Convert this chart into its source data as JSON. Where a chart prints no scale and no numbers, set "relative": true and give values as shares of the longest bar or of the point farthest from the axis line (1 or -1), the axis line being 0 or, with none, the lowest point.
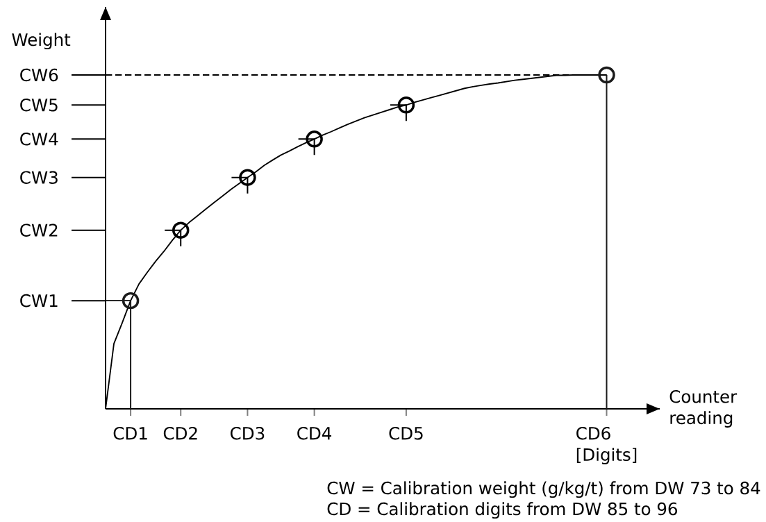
{
  "chart_data": {
    "type": "line",
    "relative": true,
    "xlabel": "Counter reading",
    "ylabel": "Weight",
    "categories": [
      null,
      null,
      null,
      "CD1",
      null,
      null,
      null,
      null,
      null,
      "CD2",
      null,
      null,
      null,
      null,
      null,
      null,
      null,
      "CD3",
      null,
      null,
      null,
      null,
      null,
      null,
      null,
      "CD4",
      null,
      null,
      null,
      null,
      null,
      null,
      null,
      null,
      null,
      null,
      "CD5",
      null,
      null,
      null,
      null,
      null,
      null,
      null,
      null,
      null,
      null,
      null,
      null,
      null,
      null,
      null,
      null,
      null,
      null,
      null,
      null,
      null,
      null,
      null,
      "CD6 [Digits]"
    ],
    "series": [
      {
        "color": "#000000",
        "line_style": "dashed",
        "values": [
          1,
          1,
          1,
          1,
          1,
          1,
          1,
          1,
          1,
          1,
          1,
          1,
          1,
          1,
          1,
          1,
          1,
          1,
          1,
          1,
          1,
          1,
          1,
          1,
          1,
          1,
          1,
          1,
          1,
          1,
          1,
          1,
          1,
          1,
          1,
          1,
          1,
          1,
          1,
          1,
          1,
          1,
          1,
          1,
          1,
          1,
          1,
          1,
          1,
          1,
          1,
          1,
          1,
          1,
          1,
          1,
          1,
          1,
          1,
          1,
          1
        ]
      },
      {
        "color": "#000000",
        "values": [
          0.324,
          0.324,
          0.324,
          0.324,
          null,
          null,
          null,
          null,
          null,
          null,
          null,
          null,
          null,
          null,
          null,
          null,
          null,
          null,
          null,
          null,
          null,
          null,
          null,
          null,
          null,
          null,
          null,
          null,
          null,
          null,
          null,
          null,
          null,
          null,
          null,
          null,
          null,
          null,
          null,
          null,
          null,
          null,
          null,
          null,
          null,
          null,
          null,
          null,
          null,
          null,
          null,
          null,
          null,
          null,
          null,
          null,
          null,
          null,
          null,
          null,
          null
        ]
      },
      {
        "color": "#000000",
        "values": [
          0,
          0.195,
          0.258,
          0.324,
          0.374,
          0.409,
          0.442,
          0.472,
          0.505,
          0.535,
          0.558,
          0.578,
          0.598,
          0.618,
          0.637,
          0.657,
          0.675,
          0.693,
          0.71,
          0.729,
          0.745,
          0.76,
          0.772,
          0.785,
          0.797,
          0.808,
          0.82,
          0.83,
          0.841,
          0.852,
          0.862,
          0.872,
          0.88,
          0.888,
          0.896,
          0.904,
          0.91,
          0.918,
          0.925,
          0.932,
          0.939,
          0.946,
          0.953,
          0.96,
          0.965,
          0.969,
          0.973,
          0.976,
          0.98,
          0.984,
          0.987,
          0.99,
          0.993,
          0.996,
          0.999,
          0.999,
          1,
          1,
          1,
          1,
          1
        ]
      },
      {
        "type": "lollipop",
        "color": "#1a1a1a",
        "marker": "circle",
        "values": [
          null,
          null,
          null,
          0.324,
          null,
          null,
          null,
          null,
          null,
          null,
          null,
          null,
          null,
          null,
          null,
          null,
          null,
          null,
          null,
          null,
          null,
          null,
          null,
          null,
          null,
          null,
          null,
          null,
          null,
          null,
          null,
          null,
          null,
          null,
          null,
          null,
          null,
          null,
          null,
          null,
          null,
          null,
          null,
          null,
          null,
          null,
          null,
          null,
          null,
          null,
          null,
          null,
          null,
          null,
          null,
          null,
          null,
          null,
          null,
          null,
          1
        ]
      },
      {
        "type": "scatter",
        "color": "#000000",
        "marker": "circle",
        "values": [
          null,
          null,
          null,
          null,
          null,
          null,
          null,
          null,
          null,
          0.535,
          null,
          null,
          null,
          null,
          null,
          null,
          null,
          0.693,
          null,
          null,
          null,
          null,
          null,
          null,
          null,
          0.808,
          null,
          null,
          null,
          null,
          null,
          null,
          null,
          null,
          null,
          null,
          0.91,
          null,
          null,
          null,
          null,
          null,
          null,
          null,
          null,
          null,
          null,
          null,
          null,
          null,
          null,
          null,
          null,
          null,
          null,
          null,
          null,
          null,
          null,
          null,
          null
        ]
      }
    ],
    "annotations": [
      "CW1",
      "CW2",
      "CW3",
      "CW4",
      "CW5",
      "CW6",
      "CW = Calibration weight (g/kg/t) from DW 73 to 84",
      "CD = Calibration digits from DW 85 to 96"
    ]
  }
}
